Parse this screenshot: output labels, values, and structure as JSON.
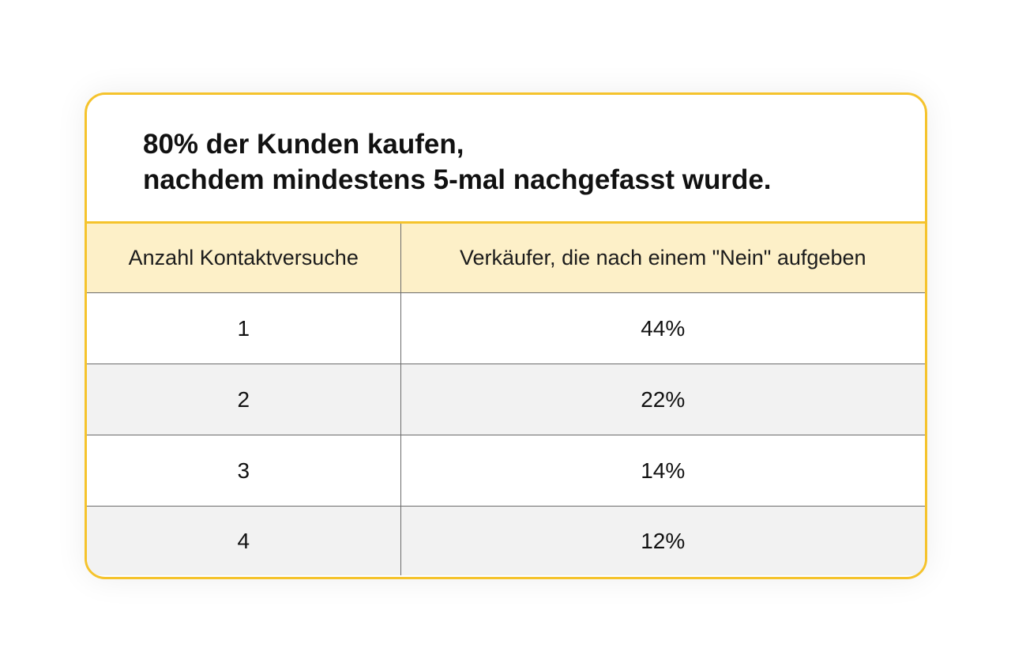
{
  "title": {
    "line1": "80% der Kunden kaufen,",
    "line2": "nachdem mindestens 5-mal nachgefasst wurde."
  },
  "table": {
    "headers": [
      "Anzahl Kontaktversuche",
      "Verkäufer, die nach einem \"Nein\" aufgeben"
    ],
    "rows": [
      {
        "attempts": "1",
        "percent": "44%"
      },
      {
        "attempts": "2",
        "percent": "22%"
      },
      {
        "attempts": "3",
        "percent": "14%"
      },
      {
        "attempts": "4",
        "percent": "12%"
      }
    ]
  },
  "colors": {
    "border_accent": "#f5c32c",
    "header_bg": "#fdf0c8",
    "shaded_row_bg": "#f2f2f2"
  }
}
